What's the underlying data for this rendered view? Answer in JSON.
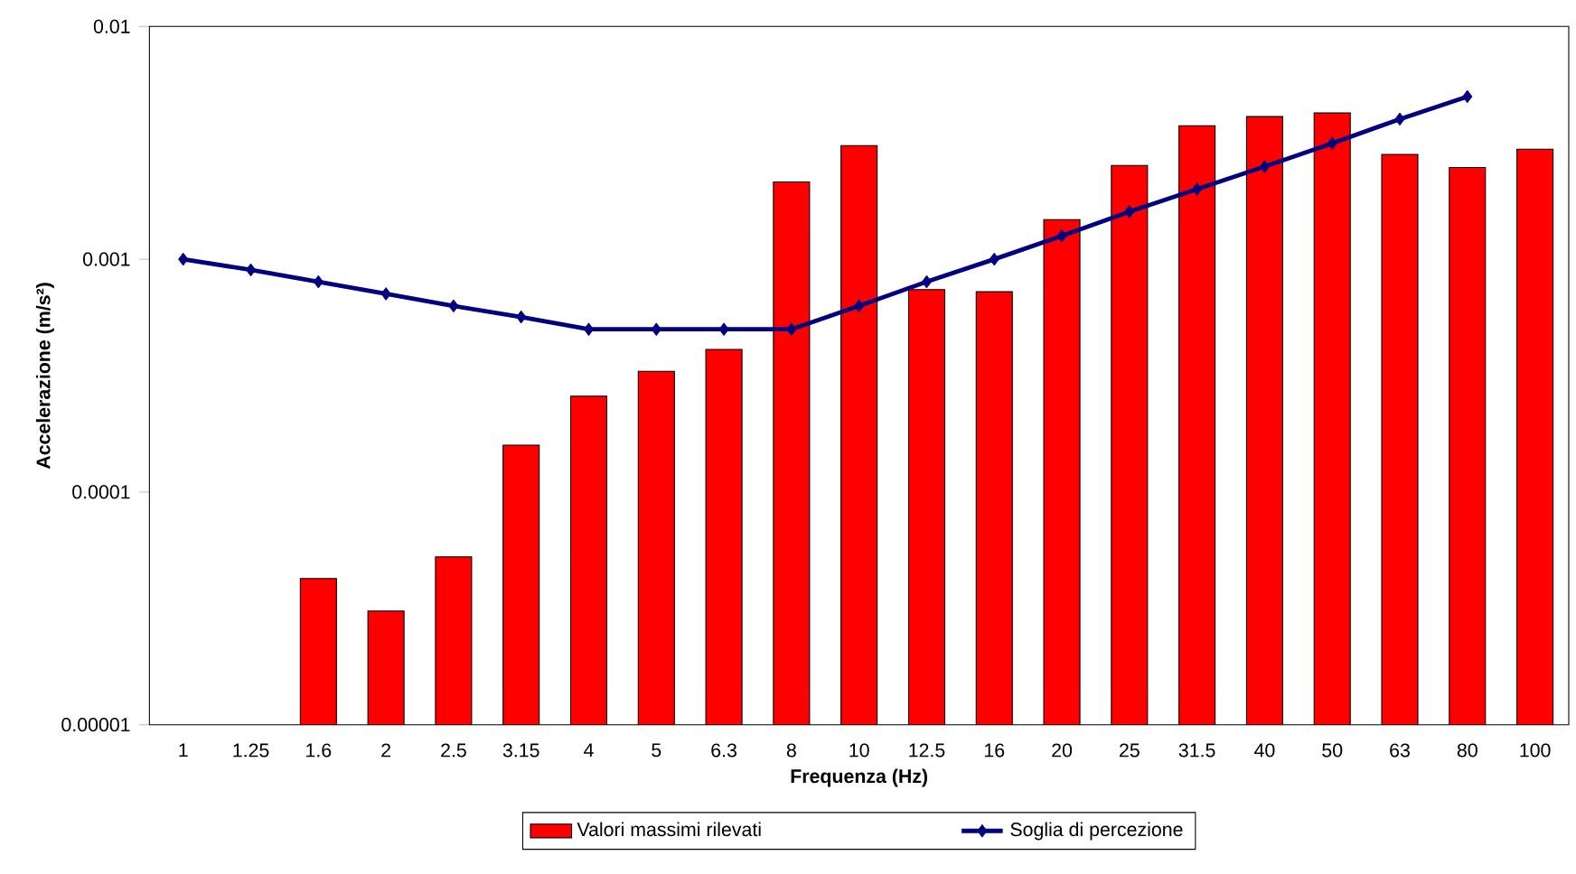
{
  "chart_data": {
    "type": "bar",
    "xlabel": "Frequenza (Hz)",
    "ylabel": "Accelerazione (m/s²)",
    "categories": [
      "1",
      "1.25",
      "1.6",
      "2",
      "2.5",
      "3.15",
      "4",
      "5",
      "6.3",
      "8",
      "10",
      "12.5",
      "16",
      "20",
      "25",
      "31.5",
      "40",
      "50",
      "63",
      "80",
      "100"
    ],
    "series": [
      {
        "name": "Valori massimi rilevati",
        "color": "#ff0000",
        "values": [
          null,
          null,
          4.25e-05,
          3.08e-05,
          5.26e-05,
          0.000159,
          0.000258,
          0.00033,
          0.00041,
          0.00215,
          0.00308,
          0.00074,
          0.000725,
          0.00148,
          0.00253,
          0.00375,
          0.0041,
          0.00425,
          0.00282,
          0.00248,
          0.00297
        ]
      },
      {
        "name": "Soglia di percezione",
        "type": "line",
        "color": "#000080",
        "marker": "diamond",
        "values": [
          0.001,
          0.0009,
          0.0008,
          0.00071,
          0.00063,
          0.000565,
          0.0005,
          0.0005,
          0.0005,
          0.0005,
          0.00063,
          0.0008,
          0.001,
          0.00126,
          0.0016,
          0.002,
          0.0025,
          0.00315,
          0.004,
          0.005,
          null
        ]
      }
    ],
    "log": "y",
    "ylim": [
      1e-05,
      0.01
    ],
    "yticks": [
      {
        "value": 1e-05,
        "label": "0.00001"
      },
      {
        "value": 0.0001,
        "label": "0.0001"
      },
      {
        "value": 0.001,
        "label": "0.001"
      },
      {
        "value": 0.01,
        "label": "0.01"
      }
    ],
    "grid": false,
    "legend": "bottom"
  }
}
